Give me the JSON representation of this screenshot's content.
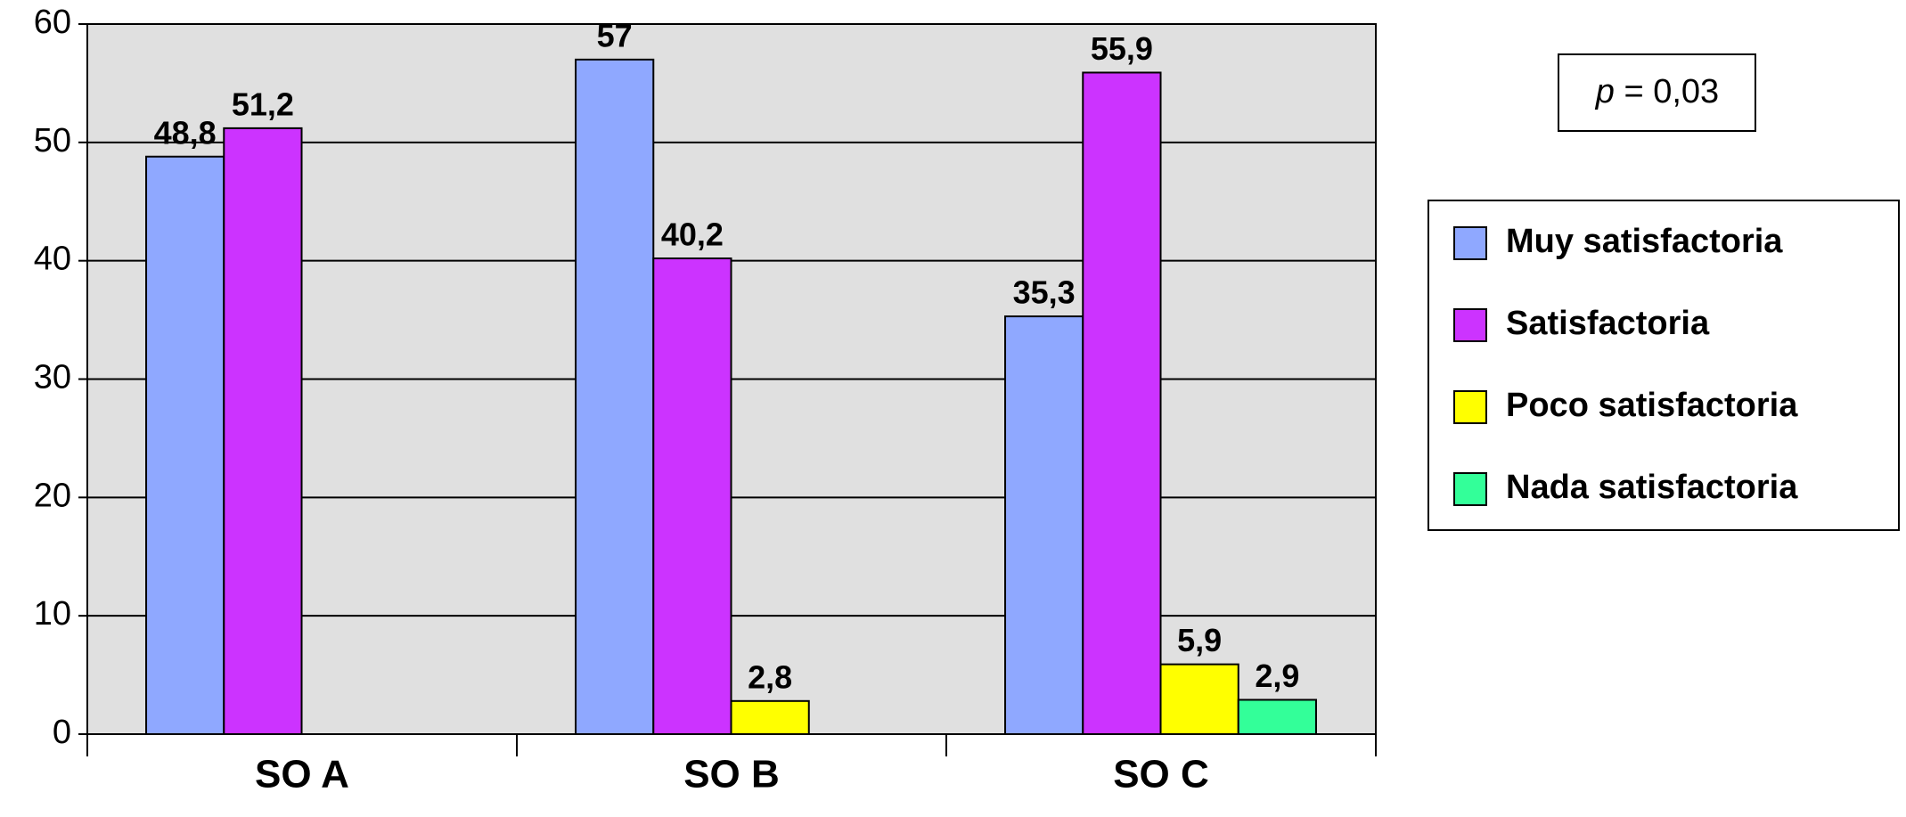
{
  "chart_data": {
    "type": "bar",
    "categories": [
      "SO A",
      "SO B",
      "SO C"
    ],
    "series": [
      {
        "name": "Muy satisfactoria",
        "color": "#8fa8ff",
        "values": [
          48.8,
          57,
          35.3
        ],
        "value_labels": [
          "48,8",
          "57",
          "35,3"
        ]
      },
      {
        "name": "Satisfactoria",
        "color": "#cc33ff",
        "values": [
          51.2,
          40.2,
          55.9
        ],
        "value_labels": [
          "51,2",
          "40,2",
          "55,9"
        ]
      },
      {
        "name": "Poco satisfactoria",
        "color": "#ffff00",
        "values": [
          null,
          2.8,
          5.9
        ],
        "value_labels": [
          null,
          "2,8",
          "5,9"
        ]
      },
      {
        "name": "Nada satisfactoria",
        "color": "#33ff99",
        "values": [
          null,
          null,
          2.9
        ],
        "value_labels": [
          null,
          null,
          "2,9"
        ]
      }
    ],
    "ylim": [
      0,
      60
    ],
    "yticks": [
      0,
      10,
      20,
      30,
      40,
      50,
      60
    ],
    "grid": true,
    "annotation": {
      "variable": "p",
      "text": "= 0,03"
    },
    "plot_background": "#e0e0e0"
  }
}
